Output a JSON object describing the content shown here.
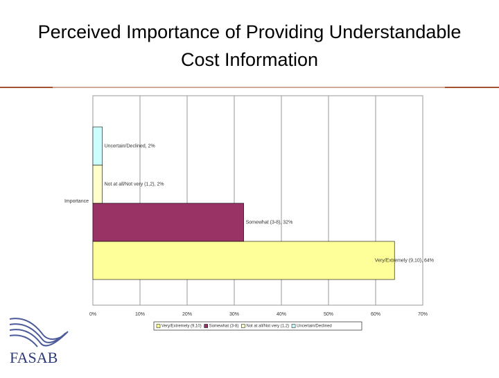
{
  "chart_data": {
    "type": "bar",
    "orientation": "horizontal",
    "title": "Perceived Importance of Providing Understandable Cost Information",
    "categories": [
      "Importance"
    ],
    "series": [
      {
        "name": "Very/Extremely (9,10)",
        "color": "#ffff99",
        "values": [
          64
        ],
        "value_labels": [
          "Very/Extremely (9,10), 64%"
        ]
      },
      {
        "name": "Somewhat (3-8)",
        "color": "#993366",
        "values": [
          32
        ],
        "value_labels": [
          "Somewhat (3-8), 32%"
        ]
      },
      {
        "name": "Not at all/Not very (1,2)",
        "color": "#ffffcc",
        "values": [
          2
        ],
        "value_labels": [
          "Not at all/Not very (1,2), 2%"
        ]
      },
      {
        "name": "Uncertain/Declined",
        "color": "#ccffff",
        "values": [
          2
        ],
        "value_labels": [
          "Uncertain/Declined, 2%"
        ]
      }
    ],
    "xlim": [
      0,
      70
    ],
    "xticks": [
      {
        "value": 0,
        "label": "0%"
      },
      {
        "value": 10,
        "label": "10%"
      },
      {
        "value": 20,
        "label": "20%"
      },
      {
        "value": 30,
        "label": "30%"
      },
      {
        "value": 40,
        "label": "40%"
      },
      {
        "value": 50,
        "label": "50%"
      },
      {
        "value": 60,
        "label": "60%"
      },
      {
        "value": 70,
        "label": "70%"
      }
    ],
    "grid": true,
    "legend": "bottom"
  },
  "logo": {
    "text": "FASAB"
  }
}
